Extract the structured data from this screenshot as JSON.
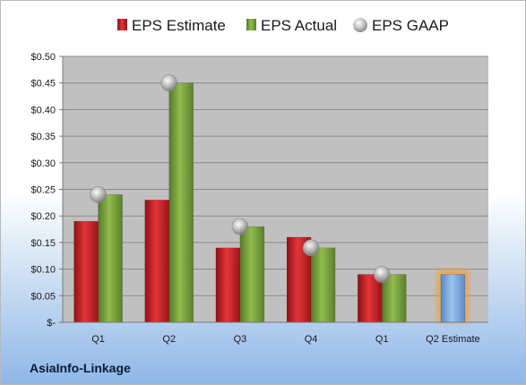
{
  "chart_data": {
    "type": "bar",
    "title": "",
    "xlabel": "",
    "ylabel": "",
    "categories": [
      "Q1",
      "Q2",
      "Q3",
      "Q4",
      "Q1",
      "Q2 Estimate"
    ],
    "series": [
      {
        "name": "EPS Estimate",
        "type": "bar",
        "color": "#d12127",
        "values": [
          0.19,
          0.23,
          0.14,
          0.16,
          0.09,
          null
        ]
      },
      {
        "name": "EPS Actual",
        "type": "bar",
        "color": "#7ca33b",
        "values": [
          0.24,
          0.45,
          0.18,
          0.14,
          0.09,
          null
        ]
      },
      {
        "name": "EPS GAAP",
        "type": "scatter",
        "color": "#b8b8b8",
        "values": [
          0.24,
          0.45,
          0.18,
          0.14,
          0.09,
          null
        ]
      }
    ],
    "estimate_bar": {
      "category": "Q2 Estimate",
      "value": 0.09,
      "color": "#7aa8e0",
      "glow": "#f0a040"
    },
    "ylim": [
      0,
      0.5
    ],
    "yticks": [
      0,
      0.05,
      0.1,
      0.15,
      0.2,
      0.25,
      0.3,
      0.35,
      0.4,
      0.45,
      0.5
    ],
    "ytick_labels": [
      "$-",
      "$0.05",
      "$0.10",
      "$0.15",
      "$0.20",
      "$0.25",
      "$0.30",
      "$0.35",
      "$0.40",
      "$0.45",
      "$0.50"
    ],
    "grid": true,
    "legend_position": "top",
    "plot_background": "#c0c0c0"
  },
  "company": "AsiaInfo-Linkage"
}
